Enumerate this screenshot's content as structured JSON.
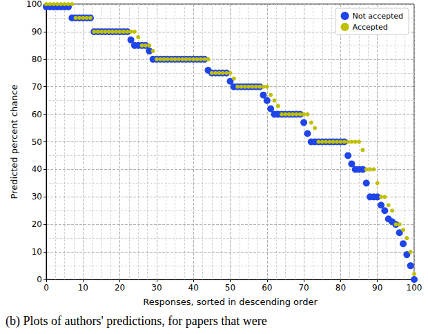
{
  "chart_data": {
    "type": "scatter",
    "xlabel": "Responses, sorted in descending order",
    "ylabel": "Predicted percent chance",
    "caption": "(b) Plots of authors' predictions, for papers that were",
    "x": [
      0,
      1,
      2,
      3,
      4,
      5,
      6,
      7,
      8,
      9,
      10,
      11,
      12,
      13,
      14,
      15,
      16,
      17,
      18,
      19,
      20,
      21,
      22,
      23,
      24,
      25,
      26,
      27,
      28,
      29,
      30,
      31,
      32,
      33,
      34,
      35,
      36,
      37,
      38,
      39,
      40,
      41,
      42,
      43,
      44,
      45,
      46,
      47,
      48,
      49,
      50,
      51,
      52,
      53,
      54,
      55,
      56,
      57,
      58,
      59,
      60,
      61,
      62,
      63,
      64,
      65,
      66,
      67,
      68,
      69,
      70,
      71,
      72,
      73,
      74,
      75,
      76,
      77,
      78,
      79,
      80,
      81,
      82,
      83,
      84,
      85,
      86,
      87,
      88,
      89,
      90,
      91,
      92,
      93,
      94,
      95,
      96,
      97,
      98,
      99,
      100
    ],
    "series": [
      {
        "name": "Not accepted",
        "color": "#1f44e8",
        "marker": "circle",
        "values": [
          99,
          99,
          99,
          99,
          99,
          99,
          99,
          95,
          95,
          95,
          95,
          95,
          95,
          90,
          90,
          90,
          90,
          90,
          90,
          90,
          90,
          90,
          90,
          87,
          85,
          85,
          85,
          85,
          83,
          80,
          80,
          80,
          80,
          80,
          80,
          80,
          80,
          80,
          80,
          80,
          80,
          80,
          80,
          80,
          76,
          75,
          75,
          75,
          75,
          75,
          72,
          70,
          70,
          70,
          70,
          70,
          70,
          70,
          70,
          67,
          65,
          62,
          60,
          60,
          60,
          60,
          60,
          60,
          60,
          60,
          57,
          53,
          50,
          50,
          50,
          50,
          50,
          50,
          50,
          50,
          50,
          50,
          45,
          42,
          40,
          40,
          40,
          35,
          30,
          30,
          30,
          27,
          25,
          22,
          21,
          20,
          17,
          13,
          9,
          5,
          0
        ]
      },
      {
        "name": "Accepted",
        "color": "#bfbf00",
        "marker": "circle",
        "values": [
          100,
          100,
          100,
          100,
          100,
          100,
          100,
          100,
          95,
          95,
          95,
          95,
          95,
          90,
          90,
          90,
          90,
          90,
          90,
          90,
          90,
          90,
          90,
          90,
          90,
          88,
          85,
          85,
          85,
          83,
          80,
          80,
          80,
          80,
          80,
          80,
          80,
          80,
          80,
          80,
          80,
          80,
          80,
          80,
          80,
          75,
          75,
          75,
          75,
          75,
          75,
          73,
          70,
          70,
          70,
          70,
          70,
          70,
          70,
          70,
          70,
          67,
          65,
          63,
          60,
          60,
          60,
          60,
          60,
          60,
          60,
          60,
          57,
          55,
          50,
          50,
          50,
          50,
          50,
          50,
          50,
          50,
          50,
          50,
          50,
          50,
          47,
          40,
          40,
          40,
          35,
          30,
          30,
          27,
          25,
          20,
          20,
          18,
          15,
          10,
          2
        ]
      }
    ],
    "xlim": [
      0,
      100
    ],
    "xticks": [
      0,
      10,
      20,
      30,
      40,
      50,
      60,
      70,
      80,
      90,
      100
    ],
    "ylim": [
      0,
      100
    ],
    "yticks": [
      0,
      10,
      20,
      30,
      40,
      50,
      60,
      70,
      80,
      90,
      100
    ],
    "grid": true,
    "legend": "upper right"
  }
}
